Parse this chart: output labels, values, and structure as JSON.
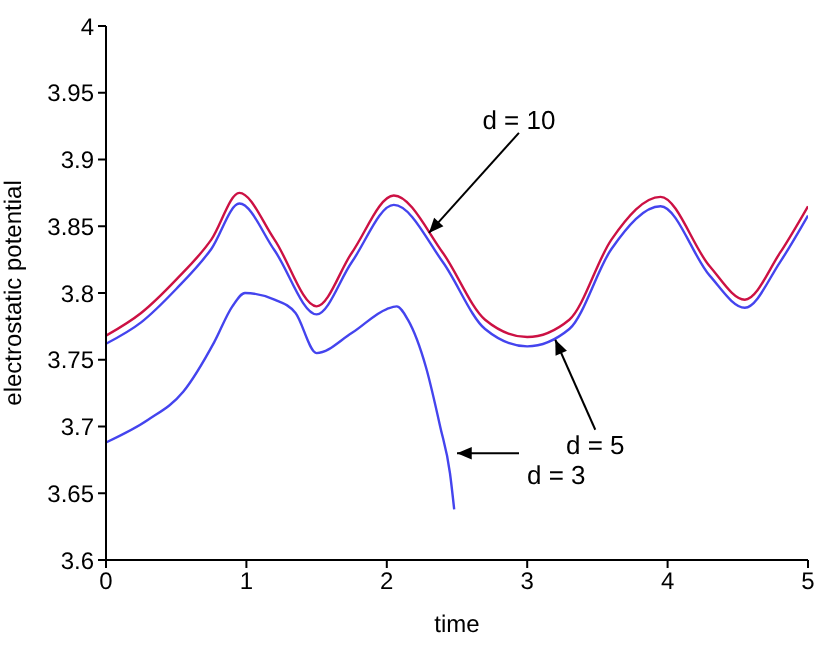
{
  "chart_data": {
    "type": "line",
    "xlabel": "time",
    "ylabel": "electrostatic potential",
    "xlim": [
      0,
      5
    ],
    "xticks": [
      0,
      1,
      2,
      3,
      4,
      5
    ],
    "ylim": [
      3.6,
      4
    ],
    "yticks": [
      3.6,
      3.65,
      3.7,
      3.75,
      3.8,
      3.85,
      3.9,
      3.95,
      4
    ],
    "grid": false,
    "legend": false,
    "marker": "none",
    "line_style": "solid",
    "series": [
      {
        "color": "#cc1144",
        "x": [
          0,
          0.25,
          0.5,
          0.75,
          0.95,
          1.2,
          1.5,
          1.75,
          2.05,
          2.4,
          2.7,
          3.0,
          3.3,
          3.6,
          3.95,
          4.3,
          4.55,
          4.8,
          5
        ],
        "values": [
          3.768,
          3.785,
          3.81,
          3.84,
          3.875,
          3.84,
          3.79,
          3.83,
          3.873,
          3.83,
          3.78,
          3.767,
          3.78,
          3.84,
          3.872,
          3.82,
          3.795,
          3.83,
          3.865
        ]
      },
      {
        "color": "#4444ee",
        "x": [
          0,
          0.25,
          0.5,
          0.75,
          0.95,
          1.2,
          1.5,
          1.75,
          2.05,
          2.4,
          2.7,
          3.0,
          3.3,
          3.6,
          3.95,
          4.3,
          4.55,
          4.8,
          5
        ],
        "values": [
          3.762,
          3.778,
          3.803,
          3.833,
          3.867,
          3.832,
          3.784,
          3.823,
          3.866,
          3.823,
          3.773,
          3.76,
          3.773,
          3.833,
          3.865,
          3.813,
          3.789,
          3.823,
          3.858
        ]
      },
      {
        "color": "#4444ee",
        "x": [
          0,
          0.3,
          0.55,
          0.77,
          0.9,
          0.99,
          1.2,
          1.35,
          1.5,
          1.75,
          2.0,
          2.07,
          2.15,
          2.28,
          2.38,
          2.45,
          2.48
        ],
        "values": [
          3.688,
          3.705,
          3.726,
          3.763,
          3.79,
          3.8,
          3.795,
          3.785,
          3.755,
          3.77,
          3.788,
          3.79,
          3.78,
          3.744,
          3.7,
          3.665,
          3.638
        ]
      }
    ],
    "annotations": [
      {
        "text": "d = 10",
        "x": 2.3,
        "y": 3.845
      },
      {
        "text": "d = 5",
        "x": 3.2,
        "y": 3.765
      },
      {
        "text": "d = 3",
        "x": 2.5,
        "y": 3.68
      }
    ]
  }
}
